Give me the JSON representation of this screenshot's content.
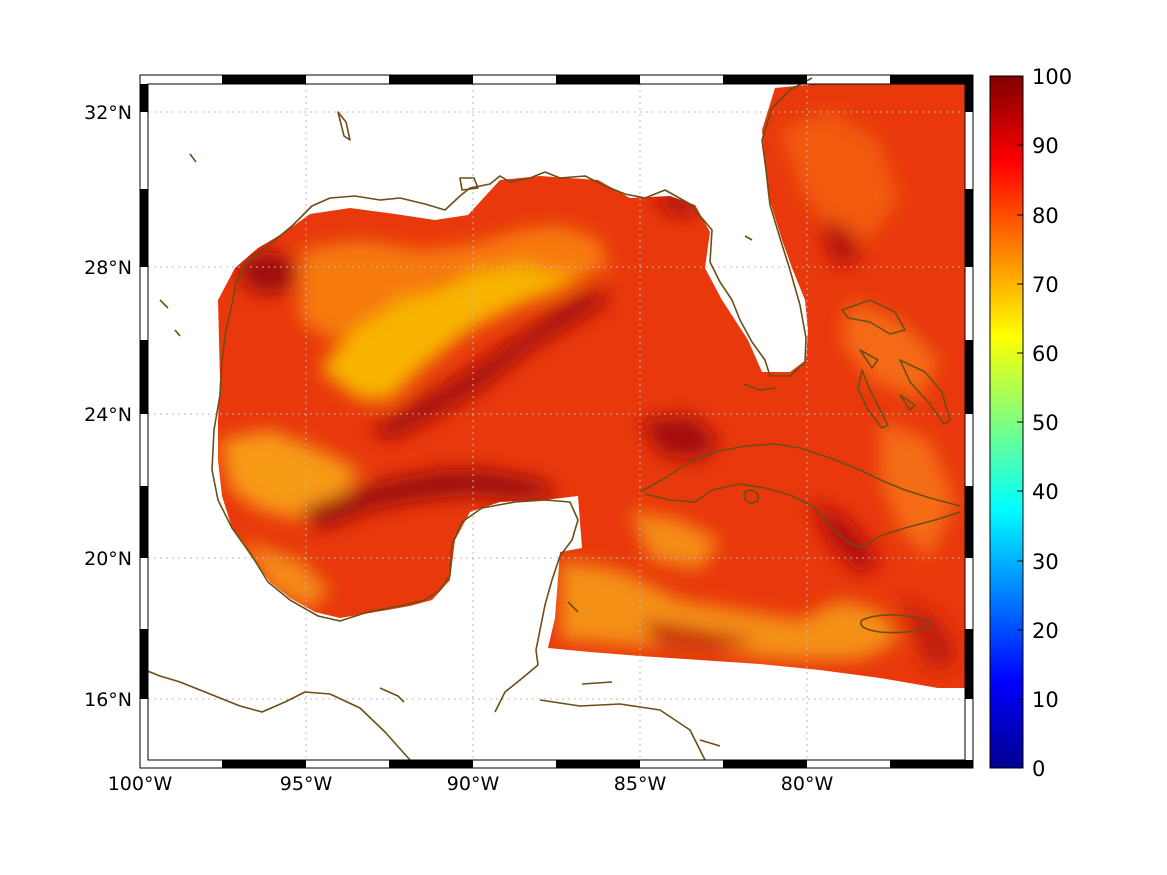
{
  "map": {
    "lon_range": [
      -100,
      -75
    ],
    "lat_range": [
      14,
      33
    ],
    "projection": "mercator",
    "grid": "dotted",
    "frame_style": "alternating black/white border"
  },
  "axes": {
    "lon_ticks": [
      {
        "value": -100,
        "label": "100°W"
      },
      {
        "value": -95,
        "label": "95°W"
      },
      {
        "value": -90,
        "label": "90°W"
      },
      {
        "value": -85,
        "label": "85°W"
      },
      {
        "value": -80,
        "label": "80°W"
      }
    ],
    "lat_ticks": [
      {
        "value": 32,
        "label": "32°N"
      },
      {
        "value": 28,
        "label": "28°N"
      },
      {
        "value": 24,
        "label": "24°N"
      },
      {
        "value": 20,
        "label": "20°N"
      },
      {
        "value": 16,
        "label": "16°N"
      }
    ]
  },
  "colorbar": {
    "colormap": "jet",
    "range": [
      0,
      100
    ],
    "ticks": [
      "0",
      "10",
      "20",
      "30",
      "40",
      "50",
      "60",
      "70",
      "80",
      "90",
      "100"
    ]
  },
  "colors": {
    "coastline": "#6b4e16",
    "land": "#ffffff",
    "field_dominant": "#e8320a",
    "field_high": "#9c0a08",
    "field_low": "#f7b000"
  }
}
